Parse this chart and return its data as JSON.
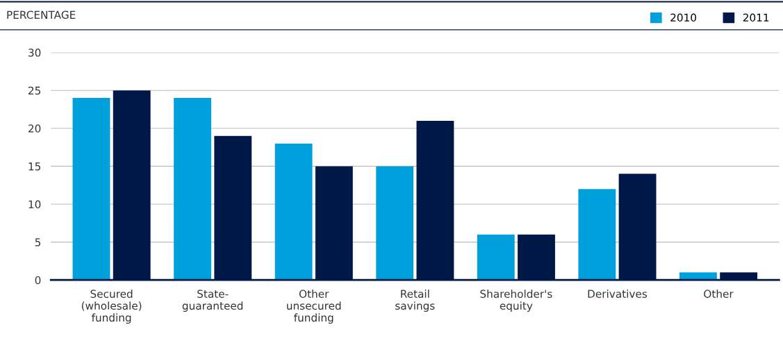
{
  "chart_data": {
    "type": "bar",
    "ylabel": "PERCENTAGE",
    "categories": [
      "Secured\n(wholesale)\nfunding",
      "State-\nguaranteed",
      "Other\nunsecured\nfunding",
      "Retail\nsavings",
      "Shareholder's\nequity",
      "Derivatives",
      "Other"
    ],
    "series": [
      {
        "name": "2010",
        "color": "#00a0dc",
        "values": [
          24,
          24,
          18,
          15,
          6,
          12,
          1
        ]
      },
      {
        "name": "2011",
        "color": "#001848",
        "values": [
          25,
          19,
          15,
          21,
          6,
          14,
          1
        ]
      }
    ],
    "ylim": [
      0,
      30
    ],
    "yticks": [
      0,
      5,
      10,
      15,
      20,
      25,
      30
    ],
    "grid": "y",
    "legend": "top right"
  }
}
